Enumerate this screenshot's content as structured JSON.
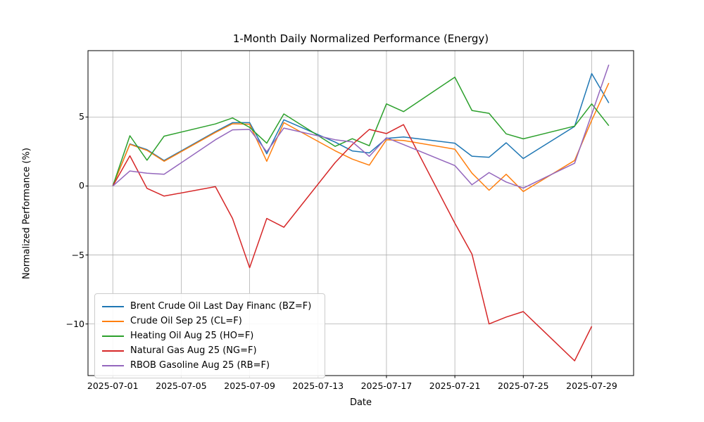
{
  "figure": {
    "title": "1-Month Daily Normalized Performance (Energy)",
    "xlabel": "Date",
    "ylabel": "Normalized Performance (%)",
    "background_color": "#ffffff",
    "grid_color": "#b0b0b0",
    "spine_color": "#000000"
  },
  "chart_data": {
    "type": "line",
    "title": "1-Month Daily Normalized Performance (Energy)",
    "xlabel": "Date",
    "ylabel": "Normalized Performance (%)",
    "grid": true,
    "legend_position": "lower left",
    "x_dates": [
      "2025-07-01",
      "2025-07-02",
      "2025-07-03",
      "2025-07-04",
      "2025-07-07",
      "2025-07-08",
      "2025-07-09",
      "2025-07-10",
      "2025-07-11",
      "2025-07-14",
      "2025-07-15",
      "2025-07-16",
      "2025-07-17",
      "2025-07-18",
      "2025-07-21",
      "2025-07-22",
      "2025-07-23",
      "2025-07-24",
      "2025-07-25",
      "2025-07-28",
      "2025-07-29",
      "2025-07-30"
    ],
    "x_tick_labels": [
      "2025-07-01",
      "2025-07-05",
      "2025-07-09",
      "2025-07-13",
      "2025-07-17",
      "2025-07-21",
      "2025-07-25",
      "2025-07-29"
    ],
    "y_ticks": [
      5,
      0,
      -5,
      -10
    ],
    "y_tick_labels": [
      "5",
      "0",
      "−5",
      "−10"
    ],
    "xlim_days": [
      -0.45,
      31.45
    ],
    "ylim": [
      -13.74,
      9.81
    ],
    "series": [
      {
        "name": "Brent Crude Oil Last Day Financ (BZ=F)",
        "color": "#1f77b4",
        "values": [
          0,
          3.05,
          2.64,
          1.85,
          3.94,
          4.59,
          4.59,
          2.33,
          4.8,
          3.18,
          2.54,
          2.4,
          3.45,
          3.55,
          3.1,
          2.16,
          2.08,
          3.13,
          1.99,
          4.32,
          8.15,
          6.02
        ]
      },
      {
        "name": "Crude Oil Sep 25 (CL=F)",
        "color": "#ff7f0e",
        "values": [
          0,
          3.02,
          2.58,
          1.79,
          3.88,
          4.51,
          4.48,
          1.79,
          4.59,
          2.55,
          1.95,
          1.51,
          3.35,
          3.3,
          2.67,
          0.93,
          -0.31,
          0.85,
          -0.4,
          1.85,
          4.76,
          7.46
        ]
      },
      {
        "name": "Heating Oil Aug 25 (HO=F)",
        "color": "#2ca02c",
        "values": [
          0,
          3.64,
          1.87,
          3.61,
          4.5,
          4.93,
          4.25,
          3.1,
          5.22,
          2.87,
          3.43,
          2.92,
          5.95,
          5.39,
          7.89,
          5.47,
          5.27,
          3.78,
          3.42,
          4.34,
          5.95,
          4.37
        ]
      },
      {
        "name": "Natural Gas Aug 25 (NG=F)",
        "color": "#d62728",
        "values": [
          0,
          2.19,
          -0.17,
          -0.73,
          -0.05,
          -2.35,
          -5.92,
          -2.35,
          -2.99,
          1.7,
          3.0,
          4.1,
          3.8,
          4.45,
          -2.7,
          -4.93,
          -10.0,
          -9.5,
          -9.1,
          -12.67,
          -10.17,
          null
        ]
      },
      {
        "name": "RBOB Gasoline Aug 25 (RB=F)",
        "color": "#9467bd",
        "values": [
          0,
          1.09,
          0.93,
          0.85,
          3.35,
          4.07,
          4.1,
          2.48,
          4.2,
          3.35,
          3.2,
          2.15,
          3.5,
          3.0,
          1.48,
          0.09,
          0.97,
          0.29,
          -0.15,
          1.65,
          5.2,
          8.79
        ]
      }
    ]
  }
}
